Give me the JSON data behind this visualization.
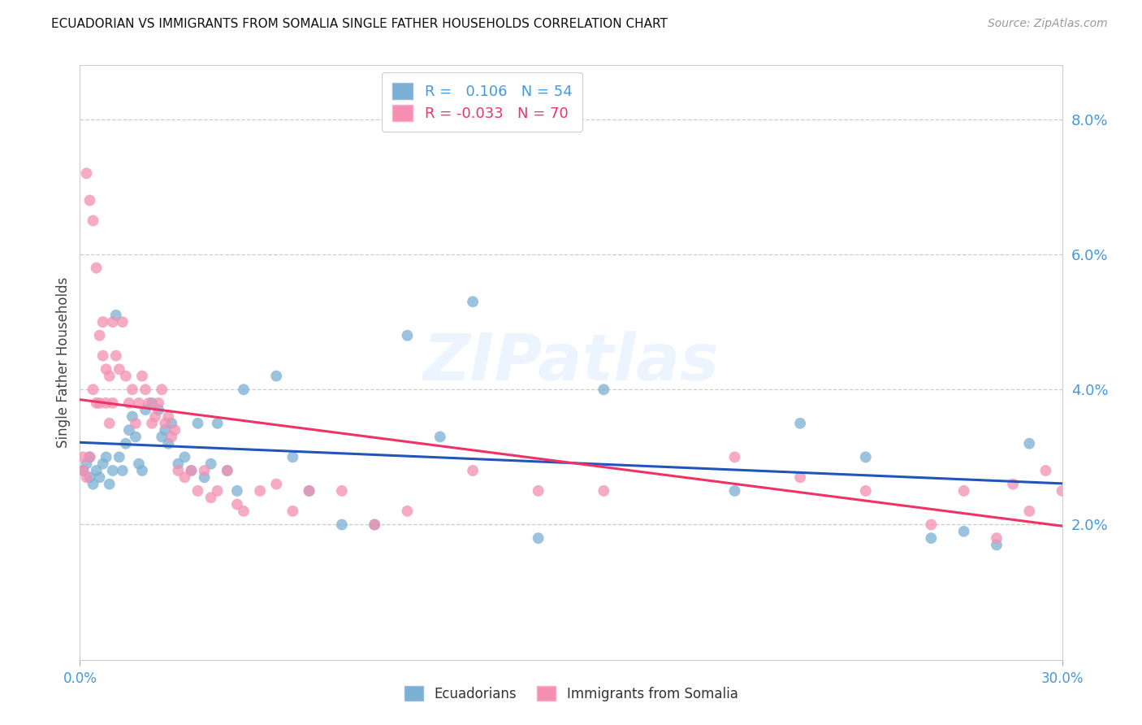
{
  "title": "ECUADORIAN VS IMMIGRANTS FROM SOMALIA SINGLE FATHER HOUSEHOLDS CORRELATION CHART",
  "source": "Source: ZipAtlas.com",
  "ylabel": "Single Father Households",
  "watermark": "ZIPatlas",
  "legend_r1_label": "R = ",
  "legend_r1_val": " 0.106",
  "legend_r1_n": "N = 54",
  "legend_r2_label": "R = ",
  "legend_r2_val": "-0.033",
  "legend_r2_n": "N = 70",
  "color_blue": "#7BAFD4",
  "color_pink": "#F48FB1",
  "color_blue_line": "#2255BB",
  "color_pink_line": "#EE3366",
  "xlim": [
    0.0,
    0.3
  ],
  "ylim": [
    0.0,
    0.088
  ],
  "ytick_vals": [
    0.02,
    0.04,
    0.06,
    0.08
  ],
  "ytick_labels": [
    "2.0%",
    "4.0%",
    "6.0%",
    "8.0%"
  ],
  "xtick_vals": [
    0.0,
    0.3
  ],
  "xtick_labels": [
    "0.0%",
    "30.0%"
  ],
  "ecuadorians_x": [
    0.001,
    0.002,
    0.003,
    0.003,
    0.004,
    0.005,
    0.006,
    0.007,
    0.008,
    0.009,
    0.01,
    0.011,
    0.012,
    0.013,
    0.014,
    0.015,
    0.016,
    0.017,
    0.018,
    0.019,
    0.02,
    0.022,
    0.024,
    0.025,
    0.026,
    0.027,
    0.028,
    0.03,
    0.032,
    0.034,
    0.036,
    0.038,
    0.04,
    0.042,
    0.045,
    0.048,
    0.05,
    0.06,
    0.065,
    0.07,
    0.08,
    0.09,
    0.1,
    0.11,
    0.12,
    0.14,
    0.16,
    0.2,
    0.22,
    0.24,
    0.26,
    0.27,
    0.28,
    0.29
  ],
  "ecuadorians_y": [
    0.028,
    0.029,
    0.027,
    0.03,
    0.026,
    0.028,
    0.027,
    0.029,
    0.03,
    0.026,
    0.028,
    0.051,
    0.03,
    0.028,
    0.032,
    0.034,
    0.036,
    0.033,
    0.029,
    0.028,
    0.037,
    0.038,
    0.037,
    0.033,
    0.034,
    0.032,
    0.035,
    0.029,
    0.03,
    0.028,
    0.035,
    0.027,
    0.029,
    0.035,
    0.028,
    0.025,
    0.04,
    0.042,
    0.03,
    0.025,
    0.02,
    0.02,
    0.048,
    0.033,
    0.053,
    0.018,
    0.04,
    0.025,
    0.035,
    0.03,
    0.018,
    0.019,
    0.017,
    0.032
  ],
  "somalia_x": [
    0.001,
    0.001,
    0.002,
    0.002,
    0.003,
    0.003,
    0.004,
    0.004,
    0.005,
    0.005,
    0.006,
    0.006,
    0.007,
    0.007,
    0.008,
    0.008,
    0.009,
    0.009,
    0.01,
    0.01,
    0.011,
    0.012,
    0.013,
    0.014,
    0.015,
    0.016,
    0.017,
    0.018,
    0.019,
    0.02,
    0.021,
    0.022,
    0.023,
    0.024,
    0.025,
    0.026,
    0.027,
    0.028,
    0.029,
    0.03,
    0.032,
    0.034,
    0.036,
    0.038,
    0.04,
    0.042,
    0.045,
    0.048,
    0.05,
    0.055,
    0.06,
    0.065,
    0.07,
    0.08,
    0.09,
    0.1,
    0.12,
    0.14,
    0.16,
    0.2,
    0.22,
    0.24,
    0.26,
    0.27,
    0.28,
    0.285,
    0.29,
    0.295,
    0.3,
    0.305
  ],
  "somalia_y": [
    0.028,
    0.03,
    0.027,
    0.072,
    0.068,
    0.03,
    0.065,
    0.04,
    0.058,
    0.038,
    0.048,
    0.038,
    0.045,
    0.05,
    0.043,
    0.038,
    0.042,
    0.035,
    0.038,
    0.05,
    0.045,
    0.043,
    0.05,
    0.042,
    0.038,
    0.04,
    0.035,
    0.038,
    0.042,
    0.04,
    0.038,
    0.035,
    0.036,
    0.038,
    0.04,
    0.035,
    0.036,
    0.033,
    0.034,
    0.028,
    0.027,
    0.028,
    0.025,
    0.028,
    0.024,
    0.025,
    0.028,
    0.023,
    0.022,
    0.025,
    0.026,
    0.022,
    0.025,
    0.025,
    0.02,
    0.022,
    0.028,
    0.025,
    0.025,
    0.03,
    0.027,
    0.025,
    0.02,
    0.025,
    0.018,
    0.026,
    0.022,
    0.028,
    0.025,
    0.03
  ]
}
